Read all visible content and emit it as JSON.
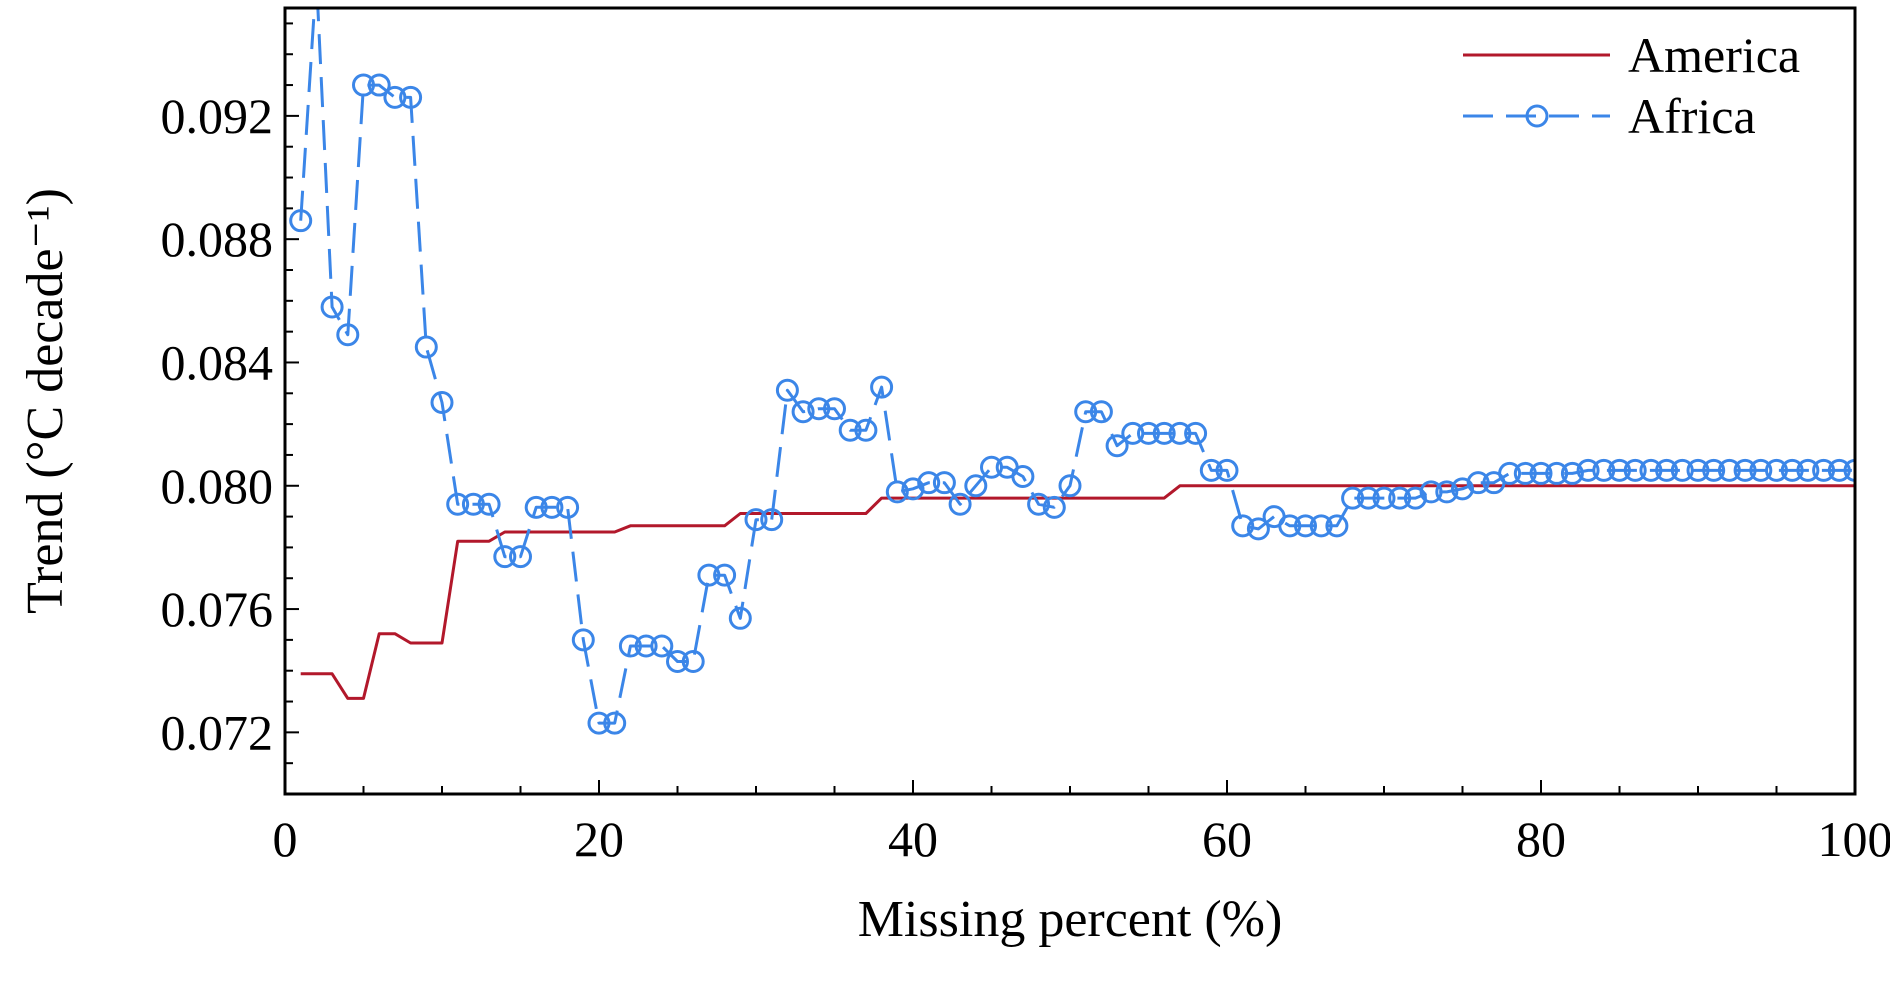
{
  "chart_data": {
    "type": "line",
    "xlabel": "Missing percent (%)",
    "ylabel": "Trend (°C decade⁻¹)",
    "xlim": [
      0,
      100
    ],
    "ylim": [
      0.07,
      0.0955
    ],
    "xticks": [
      0,
      20,
      40,
      60,
      80,
      100
    ],
    "xtick_labels": [
      "0",
      "20",
      "40",
      "60",
      "80",
      "100"
    ],
    "yticks": [
      0.072,
      0.076,
      0.08,
      0.084,
      0.088,
      0.092
    ],
    "ytick_labels": [
      "0.072",
      "0.076",
      "0.080",
      "0.084",
      "0.088",
      "0.092"
    ],
    "grid": false,
    "legend_position": "top-right",
    "series": [
      {
        "name": "America",
        "color": "#b2182b",
        "line_style": "solid",
        "marker": "none",
        "x": [
          1,
          2,
          3,
          4,
          5,
          6,
          7,
          8,
          9,
          10,
          11,
          12,
          13,
          14,
          15,
          16,
          17,
          18,
          19,
          20,
          21,
          22,
          23,
          24,
          25,
          26,
          27,
          28,
          29,
          30,
          31,
          32,
          33,
          34,
          35,
          36,
          37,
          38,
          39,
          40,
          41,
          42,
          43,
          44,
          45,
          46,
          47,
          48,
          49,
          50,
          51,
          52,
          53,
          54,
          55,
          56,
          57,
          58,
          59,
          60,
          61,
          62,
          63,
          64,
          65,
          66,
          67,
          68,
          69,
          70,
          71,
          72,
          73,
          74,
          75,
          76,
          77,
          78,
          79,
          80,
          81,
          82,
          83,
          84,
          85,
          86,
          87,
          88,
          89,
          90,
          91,
          92,
          93,
          94,
          95,
          96,
          97,
          98,
          99,
          100
        ],
        "values": [
          0.0739,
          0.0739,
          0.0739,
          0.0731,
          0.0731,
          0.0752,
          0.0752,
          0.0749,
          0.0749,
          0.0749,
          0.0782,
          0.0782,
          0.0782,
          0.0785,
          0.0785,
          0.0785,
          0.0785,
          0.0785,
          0.0785,
          0.0785,
          0.0785,
          0.0787,
          0.0787,
          0.0787,
          0.0787,
          0.0787,
          0.0787,
          0.0787,
          0.0791,
          0.0791,
          0.0791,
          0.0791,
          0.0791,
          0.0791,
          0.0791,
          0.0791,
          0.0791,
          0.0796,
          0.0796,
          0.0796,
          0.0796,
          0.0796,
          0.0796,
          0.0796,
          0.0796,
          0.0796,
          0.0796,
          0.0796,
          0.0796,
          0.0796,
          0.0796,
          0.0796,
          0.0796,
          0.0796,
          0.0796,
          0.0796,
          0.08,
          0.08,
          0.08,
          0.08,
          0.08,
          0.08,
          0.08,
          0.08,
          0.08,
          0.08,
          0.08,
          0.08,
          0.08,
          0.08,
          0.08,
          0.08,
          0.08,
          0.08,
          0.08,
          0.08,
          0.08,
          0.08,
          0.08,
          0.08,
          0.08,
          0.08,
          0.08,
          0.08,
          0.08,
          0.08,
          0.08,
          0.08,
          0.08,
          0.08,
          0.08,
          0.08,
          0.08,
          0.08,
          0.08,
          0.08,
          0.08,
          0.08,
          0.08,
          0.08
        ]
      },
      {
        "name": "Africa",
        "color": "#3b86e8",
        "line_style": "dashed",
        "marker": "circle",
        "x": [
          1,
          2,
          3,
          4,
          5,
          6,
          7,
          8,
          9,
          10,
          11,
          12,
          13,
          14,
          15,
          16,
          17,
          18,
          19,
          20,
          21,
          22,
          23,
          24,
          25,
          26,
          27,
          28,
          29,
          30,
          31,
          32,
          33,
          34,
          35,
          36,
          37,
          38,
          39,
          40,
          41,
          42,
          43,
          44,
          45,
          46,
          47,
          48,
          49,
          50,
          51,
          52,
          53,
          54,
          55,
          56,
          57,
          58,
          59,
          60,
          61,
          62,
          63,
          64,
          65,
          66,
          67,
          68,
          69,
          70,
          71,
          72,
          73,
          74,
          75,
          76,
          77,
          78,
          79,
          80,
          81,
          82,
          83,
          84,
          85,
          86,
          87,
          88,
          89,
          90,
          91,
          92,
          93,
          94,
          95,
          96,
          97,
          98,
          99,
          100
        ],
        "values": [
          0.0886,
          0.0965,
          0.0858,
          0.0849,
          0.093,
          0.093,
          0.0926,
          0.0926,
          0.0845,
          0.0827,
          0.0794,
          0.0794,
          0.0794,
          0.0777,
          0.0777,
          0.0793,
          0.0793,
          0.0793,
          0.075,
          0.0723,
          0.0723,
          0.0748,
          0.0748,
          0.0748,
          0.0743,
          0.0743,
          0.0771,
          0.0771,
          0.0757,
          0.0789,
          0.0789,
          0.0831,
          0.0824,
          0.0825,
          0.0825,
          0.0818,
          0.0818,
          0.0832,
          0.0798,
          0.0799,
          0.0801,
          0.0801,
          0.0794,
          0.08,
          0.0806,
          0.0806,
          0.0803,
          0.0794,
          0.0793,
          0.08,
          0.0824,
          0.0824,
          0.0813,
          0.0817,
          0.0817,
          0.0817,
          0.0817,
          0.0817,
          0.0805,
          0.0805,
          0.0787,
          0.0786,
          0.079,
          0.0787,
          0.0787,
          0.0787,
          0.0787,
          0.0796,
          0.0796,
          0.0796,
          0.0796,
          0.0796,
          0.0798,
          0.0798,
          0.0799,
          0.0801,
          0.0801,
          0.0804,
          0.0804,
          0.0804,
          0.0804,
          0.0804,
          0.0805,
          0.0805,
          0.0805,
          0.0805,
          0.0805,
          0.0805,
          0.0805,
          0.0805,
          0.0805,
          0.0805,
          0.0805,
          0.0805,
          0.0805,
          0.0805,
          0.0805,
          0.0805,
          0.0805,
          0.0805
        ]
      }
    ]
  }
}
